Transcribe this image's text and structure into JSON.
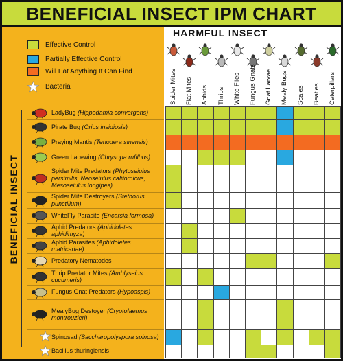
{
  "title": "BENEFICIAL INSECT IPM CHART",
  "harmful_label": "HARMFUL INSECT",
  "beneficial_label": "BENEFICIAL INSECT",
  "colors": {
    "effective": "#C8DB3C",
    "partial": "#29A8E0",
    "anything": "#F36B21",
    "bacteria_star": "#FFFFFF",
    "panel": "#F4B21C"
  },
  "legend": [
    {
      "label": "Effective Control",
      "swatch": "effective"
    },
    {
      "label": "Partially Effective Control",
      "swatch": "partial"
    },
    {
      "label": "Will Eat Anything It Can Find",
      "swatch": "anything"
    },
    {
      "label": "Bacteria",
      "swatch": "star"
    }
  ],
  "chart_data": {
    "type": "table",
    "columns": [
      "Spider Mites",
      "Flat Mites",
      "Aphids",
      "Thrips",
      "White Flies",
      "Fungus Gnats",
      "Gnat Larvae",
      "Mealy Bugs",
      "Scales",
      "Beatles",
      "Caterpillars"
    ],
    "rows": [
      {
        "common": "LadyBug",
        "sci": "(Hippodamia convergens)",
        "bacteria": false,
        "cells": [
          "E",
          "E",
          "E",
          "E",
          "E",
          "E",
          "E",
          "P",
          "E",
          "E",
          "E"
        ]
      },
      {
        "common": "Pirate Bug",
        "sci": "(Orius insidiosis)",
        "bacteria": false,
        "cells": [
          "E",
          "E",
          "E",
          "E",
          "E",
          "E",
          "E",
          "P",
          "E",
          "E",
          "E"
        ]
      },
      {
        "common": "Praying Mantis",
        "sci": "(Tenodera sinensis)",
        "bacteria": false,
        "cells": [
          "A",
          "A",
          "A",
          "A",
          "A",
          "A",
          "A",
          "A",
          "A",
          "A",
          "A"
        ]
      },
      {
        "common": "Green Lacewing",
        "sci": "(Chrysopa rufilbris)",
        "bacteria": false,
        "cells": [
          "",
          "",
          "E",
          "E",
          "E",
          "",
          "",
          "P",
          "",
          "",
          ""
        ]
      },
      {
        "common": "Spider Mite Predators",
        "sci": "(Phytoseiulus persimilis, Neoseiulus californicus, Mesoseiulus longipes)",
        "bacteria": false,
        "cells": [
          "E",
          "",
          "",
          "",
          "",
          "",
          "",
          "",
          "",
          "",
          ""
        ]
      },
      {
        "common": "Spider Mite Destroyers",
        "sci": "(Stethorus punctillum)",
        "bacteria": false,
        "cells": [
          "E",
          "",
          "",
          "",
          "",
          "",
          "",
          "",
          "",
          "",
          ""
        ]
      },
      {
        "common": "WhiteFly Parasite",
        "sci": "(Encarsia formosa)",
        "bacteria": false,
        "cells": [
          "",
          "",
          "",
          "",
          "E",
          "",
          "",
          "",
          "",
          "",
          ""
        ]
      },
      {
        "common": "Aphid Predators",
        "sci": "(Aphidoletes aphidimyza)",
        "bacteria": false,
        "cells": [
          "",
          "E",
          "",
          "",
          "",
          "",
          "",
          "",
          "",
          "",
          ""
        ]
      },
      {
        "common": "Aphid Parasites",
        "sci": "(Aphidoletes matricariae)",
        "bacteria": false,
        "cells": [
          "",
          "E",
          "",
          "",
          "",
          "",
          "",
          "",
          "",
          "",
          ""
        ]
      },
      {
        "common": "Predatory Nematodes",
        "sci": "",
        "bacteria": false,
        "cells": [
          "",
          "",
          "",
          "",
          "",
          "E",
          "E",
          "",
          "",
          "",
          "E"
        ]
      },
      {
        "common": "Thrip Predator Mites",
        "sci": "(Amblyseius cucumeris)",
        "bacteria": false,
        "cells": [
          "E",
          "",
          "E",
          "",
          "",
          "",
          "",
          "",
          "",
          "",
          ""
        ]
      },
      {
        "common": "Fungus Gnat Predators",
        "sci": "(Hypoaspis)",
        "bacteria": false,
        "cells": [
          "",
          "",
          "",
          "P",
          "",
          "",
          "",
          "",
          "",
          "",
          ""
        ]
      },
      {
        "common": "MealyBug Destoyer",
        "sci": "(Cryptolaemus montrouzieri)",
        "bacteria": false,
        "cells": [
          "",
          "",
          "E",
          "",
          "",
          "",
          "",
          "E",
          "",
          "",
          ""
        ]
      },
      {
        "common": "Spinosad",
        "sci": "(Saccharopolyspora spinosa)",
        "bacteria": true,
        "cells": [
          "P",
          "",
          "E",
          "",
          "",
          "E",
          "",
          "E",
          "",
          "E",
          "E"
        ]
      },
      {
        "common": "Bacillus thuringiensis",
        "sci": "",
        "bacteria": true,
        "cells": [
          "",
          "",
          "",
          "",
          "",
          "E",
          "E",
          "",
          "",
          "",
          "E"
        ]
      }
    ]
  }
}
